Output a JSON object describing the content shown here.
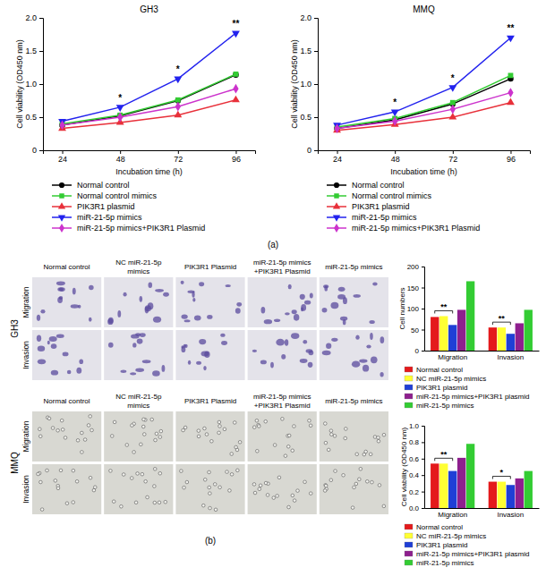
{
  "chart_data": [
    {
      "type": "line",
      "title": "GH3",
      "x_label": "Incubation time (h)",
      "y_label": "Cell viability (OD450 nm)",
      "x": [
        24,
        48,
        72,
        96
      ],
      "xlim": [
        16,
        104
      ],
      "xticks": [
        24,
        48,
        72,
        96
      ],
      "ylim": [
        0,
        2
      ],
      "yticks": [
        0,
        0.5,
        {
          "value": 1,
          "label": "1.0"
        },
        1.5,
        {
          "value": 2,
          "label": "2.0"
        }
      ],
      "grid": false,
      "legend": "bottom",
      "series": [
        {
          "name": "Normal control",
          "color": "#000000",
          "marker": "circle",
          "line_style": "solid",
          "values": [
            0.38,
            0.52,
            0.75,
            1.14
          ]
        },
        {
          "name": "Normal control mimics",
          "color": "#33cc33",
          "marker": "square",
          "line_style": "solid",
          "values": [
            0.4,
            0.53,
            0.76,
            1.15
          ]
        },
        {
          "name": "PIK3R1 plasmid",
          "color": "#e8303a",
          "marker": "triangle-up",
          "line_style": "solid",
          "values": [
            0.33,
            0.42,
            0.53,
            0.76
          ]
        },
        {
          "name": "miR-21-5p mimics",
          "color": "#2222ee",
          "marker": "triangle-down",
          "line_style": "solid",
          "values": [
            0.44,
            0.65,
            1.08,
            1.77
          ]
        },
        {
          "name": "miR-21-5p mimics+PIK3R1 Plasmid",
          "color": "#cc33cc",
          "marker": "diamond",
          "line_style": "solid",
          "values": [
            0.38,
            0.5,
            0.66,
            0.93
          ]
        }
      ],
      "annotations": [
        {
          "x": 48,
          "text": "*"
        },
        {
          "x": 72,
          "text": "*"
        },
        {
          "x": 96,
          "text": "**"
        }
      ]
    },
    {
      "type": "line",
      "title": "MMQ",
      "x_label": "Incubation time (h)",
      "y_label": "Cell viability (OD450 nm)",
      "x": [
        24,
        48,
        72,
        96
      ],
      "xlim": [
        16,
        104
      ],
      "xticks": [
        24,
        48,
        72,
        96
      ],
      "ylim": [
        0,
        2
      ],
      "yticks": [
        0,
        0.5,
        {
          "value": 1,
          "label": "1.0"
        },
        1.5,
        {
          "value": 2,
          "label": "2.0"
        }
      ],
      "grid": false,
      "legend": "bottom",
      "series": [
        {
          "name": "Normal control",
          "color": "#000000",
          "marker": "circle",
          "line_style": "solid",
          "values": [
            0.33,
            0.46,
            0.7,
            1.08
          ]
        },
        {
          "name": "Normal control mimics",
          "color": "#33cc33",
          "marker": "square",
          "line_style": "solid",
          "values": [
            0.35,
            0.48,
            0.72,
            1.13
          ]
        },
        {
          "name": "PIK3R1 plasmid",
          "color": "#e8303a",
          "marker": "triangle-up",
          "line_style": "solid",
          "values": [
            0.3,
            0.39,
            0.5,
            0.72
          ]
        },
        {
          "name": "miR-21-5p mimics",
          "color": "#2222ee",
          "marker": "triangle-down",
          "line_style": "solid",
          "values": [
            0.38,
            0.58,
            0.95,
            1.7
          ]
        },
        {
          "name": "miR-21-5p mimics+PIK3R1 Plasmid",
          "color": "#cc33cc",
          "marker": "diamond",
          "line_style": "solid",
          "values": [
            0.33,
            0.44,
            0.62,
            0.87
          ]
        }
      ],
      "annotations": [
        {
          "x": 48,
          "text": "*"
        },
        {
          "x": 72,
          "text": "*"
        },
        {
          "x": 96,
          "text": "**"
        }
      ]
    },
    {
      "type": "bar",
      "y_label": "Cell numbers",
      "categories": [
        "Migration",
        "Invasion"
      ],
      "ylim": [
        0,
        200
      ],
      "yticks": [
        0,
        50,
        100,
        150,
        200
      ],
      "grid": false,
      "legend": "bottom",
      "series": [
        {
          "name": "Normal control",
          "color": "#e41a1c",
          "values": [
            80,
            55
          ]
        },
        {
          "name": "NC miR-21-5p mimics",
          "color": "#ffff33",
          "values": [
            82,
            55
          ]
        },
        {
          "name": "PIK3R1 plasmid",
          "color": "#1f3fd6",
          "values": [
            61,
            40
          ]
        },
        {
          "name": "miR-21-5p mimics+PIK3R1 plasmid",
          "color": "#8e1f8e",
          "values": [
            97,
            65
          ]
        },
        {
          "name": "miR-21-5p mimics",
          "color": "#33cc33",
          "values": [
            165,
            97
          ]
        }
      ],
      "annotations": [
        {
          "category": 0,
          "between": [
            0,
            2
          ],
          "text": "**"
        },
        {
          "category": 1,
          "between": [
            0,
            2
          ],
          "text": "**"
        }
      ]
    },
    {
      "type": "bar",
      "y_label": "Cell viability (OD450 nm)",
      "categories": [
        "Migration",
        "Invasion"
      ],
      "ylim": [
        0,
        1
      ],
      "yticks": [
        {
          "value": 0,
          "label": "0.0"
        },
        0.2,
        0.4,
        0.6,
        0.8,
        {
          "value": 1,
          "label": "1.0"
        }
      ],
      "grid": false,
      "legend": "bottom",
      "series": [
        {
          "name": "Normal control",
          "color": "#e41a1c",
          "values": [
            0.54,
            0.32
          ]
        },
        {
          "name": "NC miR-21-5p mimics",
          "color": "#ffff33",
          "values": [
            0.54,
            0.32
          ]
        },
        {
          "name": "PIK3R1 plasmid",
          "color": "#1f3fd6",
          "values": [
            0.45,
            0.28
          ]
        },
        {
          "name": "miR-21-5p mimics+PIK3R1 plasmid",
          "color": "#8e1f8e",
          "values": [
            0.61,
            0.36
          ]
        },
        {
          "name": "miR-21-5p mimics",
          "color": "#33cc33",
          "values": [
            0.78,
            0.45
          ]
        }
      ],
      "annotations": [
        {
          "category": 0,
          "between": [
            0,
            2
          ],
          "text": "**"
        },
        {
          "category": 1,
          "between": [
            0,
            2
          ],
          "text": "*"
        }
      ]
    }
  ],
  "image_grids": [
    {
      "cell_line": "GH3",
      "columns": [
        "Normal control",
        "NC miR-21-5p mimics",
        "PIK3R1 Plasmid",
        "miR-21-5p mimics +PIK3R1 Plasmid",
        "miR-21-5p mimics"
      ],
      "rows": [
        "Migration",
        "Invasion"
      ]
    },
    {
      "cell_line": "MMQ",
      "columns": [
        "Normal control",
        "NC miR-21-5p mimics",
        "PIK3R1 Plasmid",
        "miR-21-5p mimics +PIK3R1 Plasmid",
        "miR-21-5p mimics"
      ],
      "rows": [
        "Migration",
        "Invasion"
      ]
    }
  ],
  "panel_labels": [
    "(a)",
    "(b)"
  ]
}
